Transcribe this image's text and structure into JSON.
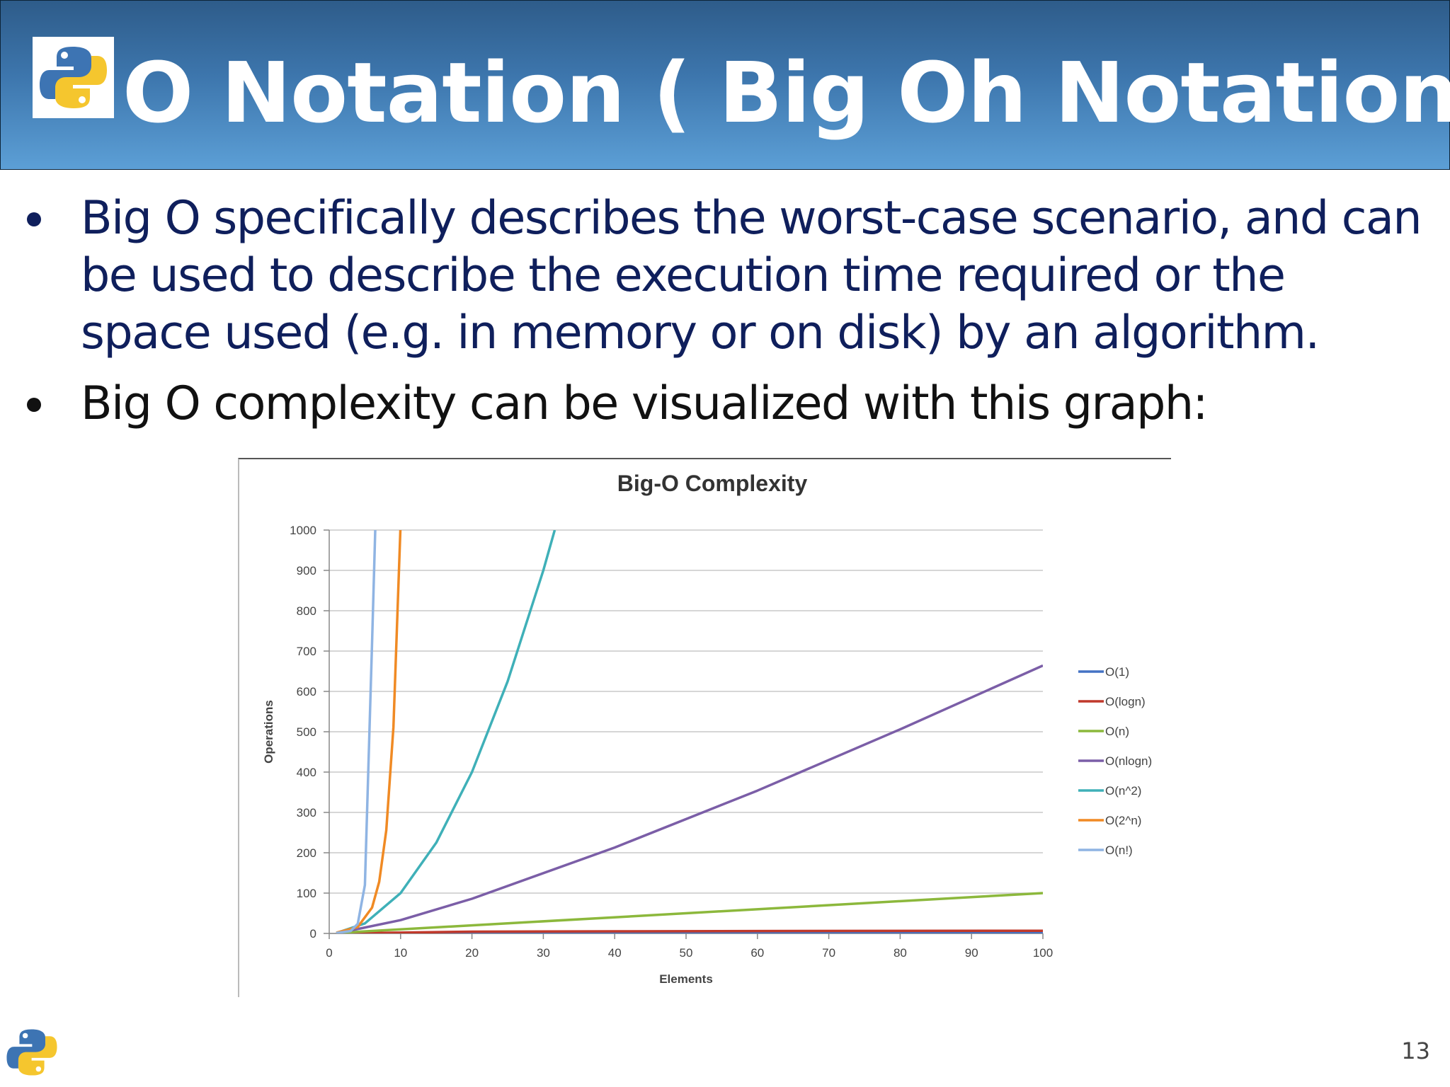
{
  "slide": {
    "title": "O Notation ( Big Oh Notation)",
    "page_number": "13",
    "bullets": [
      "Big O specifically describes the worst-case scenario, and can be used to describe the execution time required or the space used (e.g. in memory or on disk) by an algorithm.",
      "Big O complexity can be visualized with this graph:"
    ],
    "logo_icon": "python-logo-icon"
  },
  "chart_data": {
    "type": "line",
    "title": "Big-O Complexity",
    "xlabel": "Elements",
    "ylabel": "Operations",
    "xlim": [
      0,
      100
    ],
    "ylim": [
      0,
      1000
    ],
    "x_ticks": [
      "0",
      "10",
      "20",
      "30",
      "40",
      "50",
      "60",
      "70",
      "80",
      "90",
      "100"
    ],
    "y_ticks": [
      "0",
      "100",
      "200",
      "300",
      "400",
      "500",
      "600",
      "700",
      "800",
      "900",
      "1000"
    ],
    "grid": true,
    "legend_position": "right",
    "series": [
      {
        "name": "O(1)",
        "color": "#4472c4",
        "x": [
          1,
          100
        ],
        "y": [
          1,
          1
        ]
      },
      {
        "name": "O(logn)",
        "color": "#c0392b",
        "x": [
          1,
          20,
          40,
          60,
          80,
          100
        ],
        "y": [
          0,
          4.3,
          5.3,
          5.9,
          6.3,
          6.6
        ]
      },
      {
        "name": "O(n)",
        "color": "#8cb83c",
        "x": [
          1,
          100
        ],
        "y": [
          1,
          100
        ]
      },
      {
        "name": "O(nlogn)",
        "color": "#7b5ea7",
        "x": [
          1,
          10,
          20,
          40,
          60,
          80,
          100
        ],
        "y": [
          0,
          33,
          86,
          213,
          354,
          506,
          664
        ]
      },
      {
        "name": "O(n^2)",
        "color": "#3fb0b8",
        "x": [
          1,
          5,
          10,
          15,
          20,
          25,
          30,
          31.6
        ],
        "y": [
          1,
          25,
          100,
          225,
          400,
          625,
          900,
          1000
        ]
      },
      {
        "name": "O(2^n)",
        "color": "#f08a24",
        "x": [
          1,
          4,
          6,
          7,
          8,
          9,
          9.97
        ],
        "y": [
          2,
          16,
          64,
          128,
          256,
          512,
          1000
        ]
      },
      {
        "name": "O(n!)",
        "color": "#8fb4e3",
        "x": [
          1,
          3,
          4,
          5,
          6,
          6.45
        ],
        "y": [
          1,
          6,
          24,
          120,
          720,
          1000
        ]
      }
    ]
  }
}
